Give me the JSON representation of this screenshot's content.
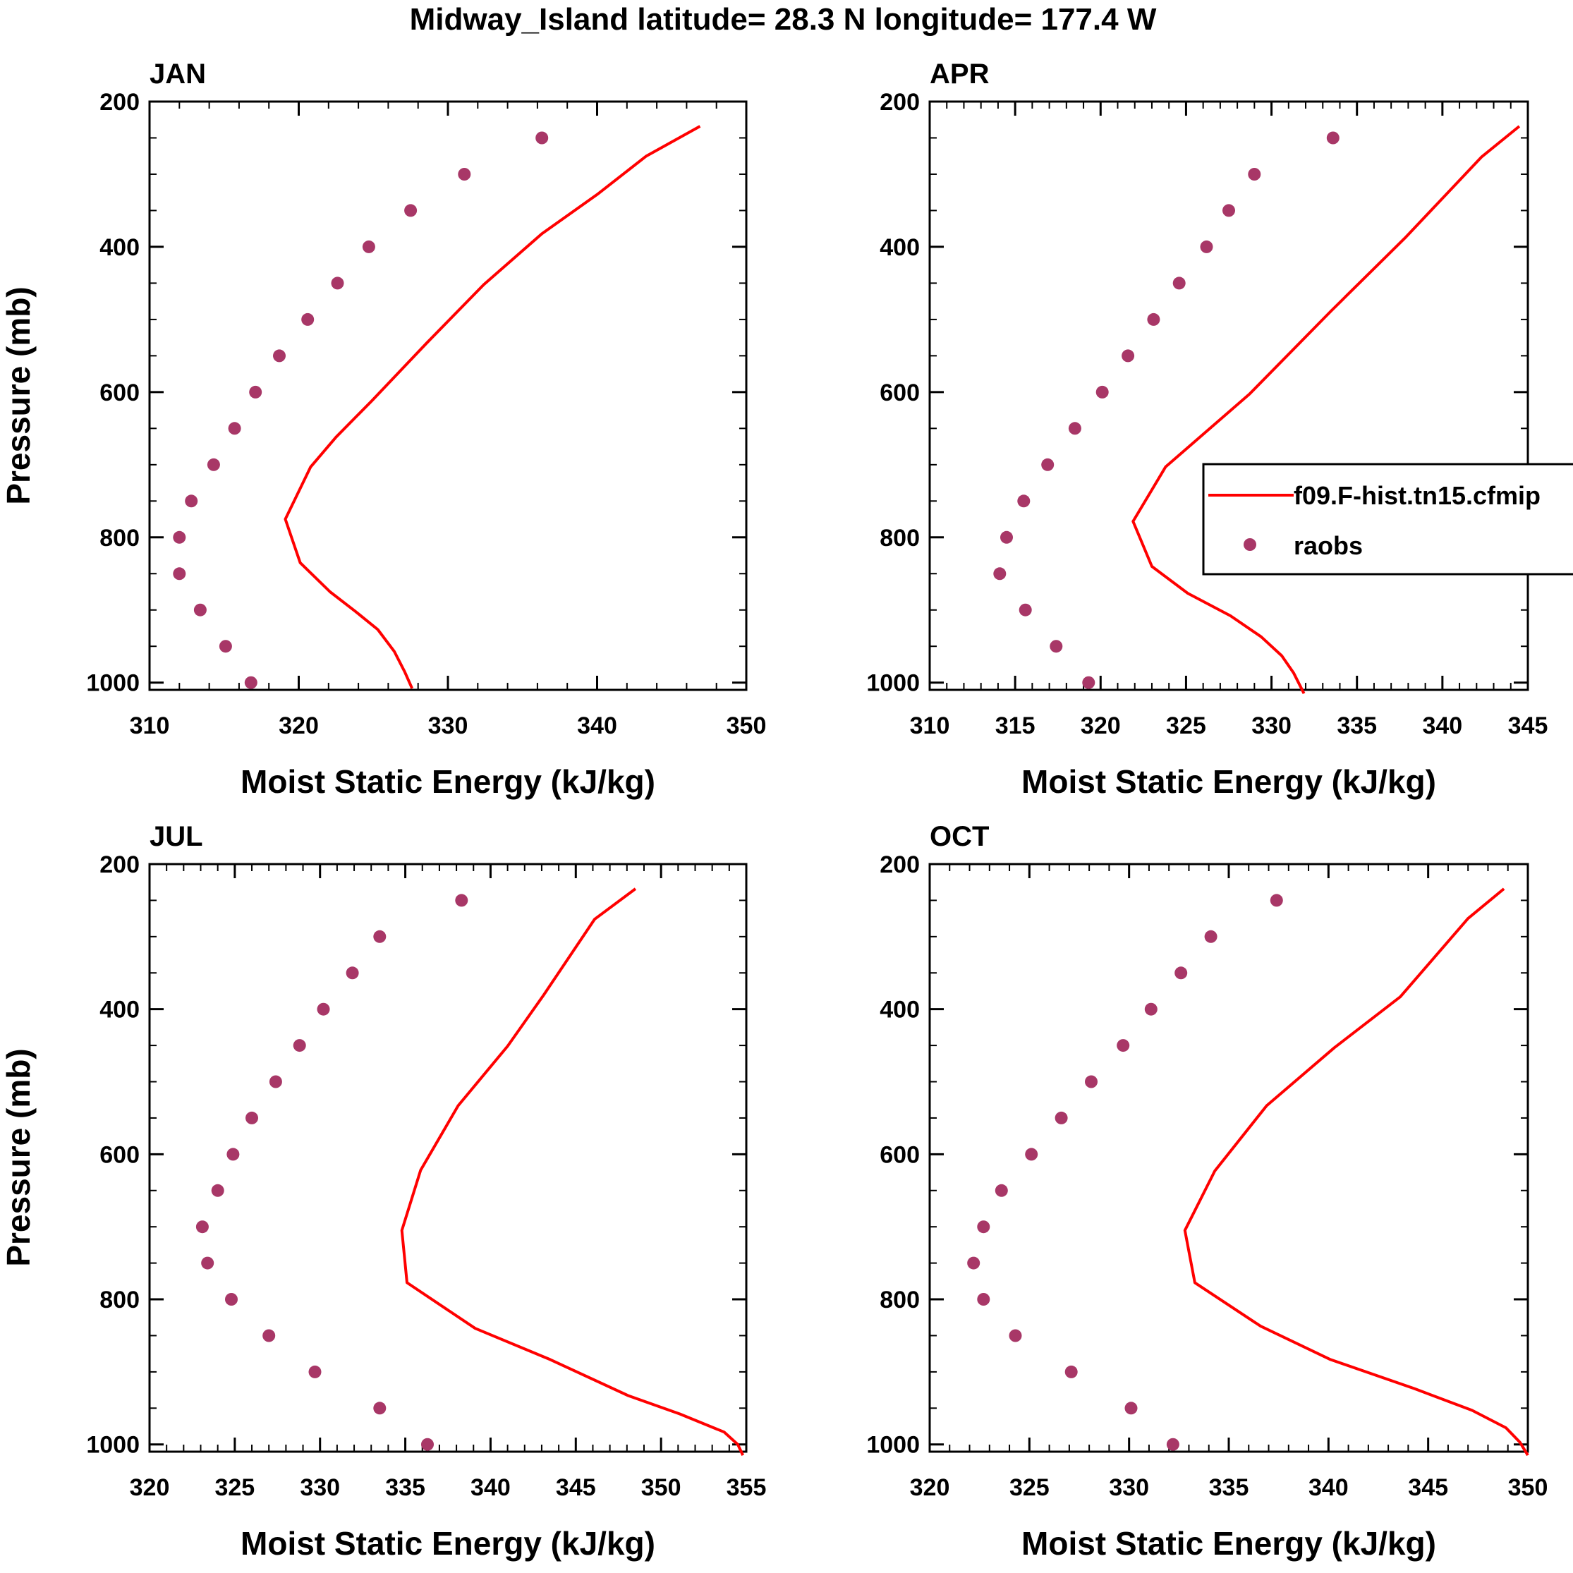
{
  "title": "Midway_Island  latitude= 28.3 N longitude= 177.4 W",
  "colors": {
    "model": "#ff0000",
    "obs": "#a83767",
    "axis": "#000000"
  },
  "legend": {
    "model_label": "f09.F-hist.tn15.cfmip",
    "obs_label": "raobs",
    "model_icon": "line-icon",
    "obs_icon": "dot-icon"
  },
  "chart_data": [
    {
      "type": "line",
      "panel": "JAN",
      "xlabel": "Moist Static Energy (kJ/kg)",
      "ylabel": "Pressure (mb)",
      "xlim": [
        310,
        350
      ],
      "xticks": [
        310,
        320,
        330,
        340,
        350
      ],
      "xminor": 2,
      "ylim": [
        200,
        1010
      ],
      "yticks": [
        200,
        400,
        600,
        800,
        1000
      ],
      "yminor": 50,
      "series": [
        {
          "name": "f09.F-hist.tn15.cfmip",
          "kind": "line",
          "x": [
            346.9,
            343.3,
            340.0,
            336.3,
            332.4,
            328.6,
            324.9,
            322.5,
            320.8,
            319.1,
            320.1,
            322.1,
            323.8,
            325.3,
            326.4,
            327.1,
            327.6
          ],
          "y": [
            234,
            275,
            328,
            382,
            452,
            532,
            612,
            662,
            703,
            775,
            835,
            875,
            902,
            927,
            957,
            985,
            1008
          ]
        },
        {
          "name": "raobs",
          "kind": "scatter",
          "x": [
            336.3,
            331.1,
            327.5,
            324.7,
            322.6,
            320.6,
            318.7,
            317.1,
            315.7,
            314.3,
            312.8,
            312.0,
            312.0,
            313.4,
            315.1,
            316.8
          ],
          "y": [
            250,
            300,
            350,
            400,
            450,
            500,
            550,
            600,
            650,
            700,
            750,
            800,
            850,
            900,
            950,
            1000
          ]
        }
      ]
    },
    {
      "type": "line",
      "panel": "APR",
      "xlabel": "Moist Static Energy (kJ/kg)",
      "ylabel": "",
      "xlim": [
        310,
        345
      ],
      "xticks": [
        310,
        315,
        320,
        325,
        330,
        335,
        340,
        345
      ],
      "xminor": 1,
      "ylim": [
        200,
        1010
      ],
      "yticks": [
        200,
        400,
        600,
        800,
        1000
      ],
      "yminor": 50,
      "series": [
        {
          "name": "f09.F-hist.tn15.cfmip",
          "kind": "line",
          "x": [
            344.5,
            342.3,
            337.8,
            333.5,
            328.7,
            323.8,
            321.9,
            323.0,
            325.1,
            327.6,
            329.4,
            330.6,
            331.3,
            331.9
          ],
          "y": [
            234,
            276,
            388,
            488,
            603,
            703,
            778,
            840,
            877,
            908,
            937,
            963,
            987,
            1015
          ]
        },
        {
          "name": "raobs",
          "kind": "scatter",
          "x": [
            333.6,
            329.0,
            327.5,
            326.2,
            324.6,
            323.1,
            321.6,
            320.1,
            318.5,
            316.9,
            315.5,
            314.5,
            314.1,
            315.6,
            317.4,
            319.3
          ],
          "y": [
            250,
            300,
            350,
            400,
            450,
            500,
            550,
            600,
            650,
            700,
            750,
            800,
            850,
            900,
            950,
            1000
          ]
        }
      ]
    },
    {
      "type": "line",
      "panel": "JUL",
      "xlabel": "Moist Static Energy (kJ/kg)",
      "ylabel": "Pressure (mb)",
      "xlim": [
        320,
        355
      ],
      "xticks": [
        320,
        325,
        330,
        335,
        340,
        345,
        350,
        355
      ],
      "xminor": 1,
      "ylim": [
        200,
        1010
      ],
      "yticks": [
        200,
        400,
        600,
        800,
        1000
      ],
      "yminor": 50,
      "series": [
        {
          "name": "f09.F-hist.tn15.cfmip",
          "kind": "line",
          "x": [
            348.5,
            346.1,
            343.1,
            341.0,
            338.1,
            335.9,
            334.8,
            335.1,
            339.1,
            343.5,
            348.1,
            351.1,
            353.7,
            354.5,
            354.8
          ],
          "y": [
            234,
            276,
            381,
            451,
            533,
            622,
            705,
            777,
            840,
            883,
            933,
            958,
            983,
            1000,
            1015
          ]
        },
        {
          "name": "raobs",
          "kind": "scatter",
          "x": [
            338.3,
            333.5,
            331.9,
            330.2,
            328.8,
            327.4,
            326.0,
            324.9,
            324.0,
            323.1,
            323.4,
            324.8,
            327.0,
            329.7,
            333.5,
            336.3
          ],
          "y": [
            250,
            300,
            350,
            400,
            450,
            500,
            550,
            600,
            650,
            700,
            750,
            800,
            850,
            900,
            950,
            1000
          ]
        }
      ]
    },
    {
      "type": "line",
      "panel": "OCT",
      "xlabel": "Moist Static Energy (kJ/kg)",
      "ylabel": "",
      "xlim": [
        320,
        350
      ],
      "xticks": [
        320,
        325,
        330,
        335,
        340,
        345,
        350
      ],
      "xminor": 1,
      "ylim": [
        200,
        1010
      ],
      "yticks": [
        200,
        400,
        600,
        800,
        1000
      ],
      "yminor": 50,
      "series": [
        {
          "name": "f09.F-hist.tn15.cfmip",
          "kind": "line",
          "x": [
            348.8,
            347.0,
            343.6,
            340.3,
            336.9,
            334.3,
            332.8,
            333.3,
            336.6,
            340.1,
            344.3,
            347.2,
            348.9,
            349.6,
            350.0
          ],
          "y": [
            234,
            275,
            383,
            453,
            533,
            623,
            705,
            777,
            837,
            883,
            923,
            953,
            977,
            997,
            1015
          ]
        },
        {
          "name": "raobs",
          "kind": "scatter",
          "x": [
            337.4,
            334.1,
            332.6,
            331.1,
            329.7,
            328.1,
            326.6,
            325.1,
            323.6,
            322.7,
            322.2,
            322.7,
            324.3,
            327.1,
            330.1,
            332.2
          ],
          "y": [
            250,
            300,
            350,
            400,
            450,
            500,
            550,
            600,
            650,
            700,
            750,
            800,
            850,
            900,
            950,
            1000
          ]
        }
      ]
    }
  ]
}
